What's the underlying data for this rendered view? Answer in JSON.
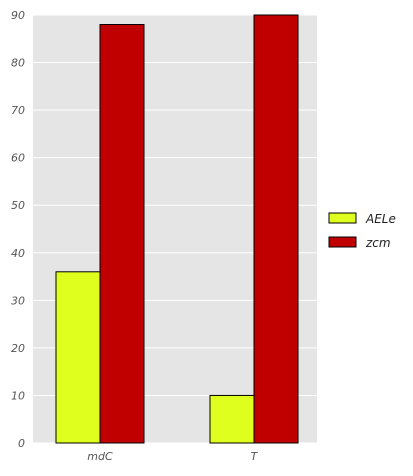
{
  "chart_data": {
    "type": "bar",
    "categories": [
      "mdC",
      "T"
    ],
    "series": [
      {
        "name": "AELe",
        "values": [
          36,
          10
        ],
        "color": "#dfff1f"
      },
      {
        "name": "zcm",
        "values": [
          88,
          90
        ],
        "color": "#c00000"
      }
    ],
    "ylim": [
      0,
      90
    ],
    "yticks": [
      0,
      10,
      20,
      30,
      40,
      50,
      60,
      70,
      80,
      90
    ],
    "grid": true,
    "legend": "right",
    "colors": {
      "plot_background": "#e5e5e5",
      "grid": "#ffffff",
      "bar_edge": "#000000"
    }
  }
}
